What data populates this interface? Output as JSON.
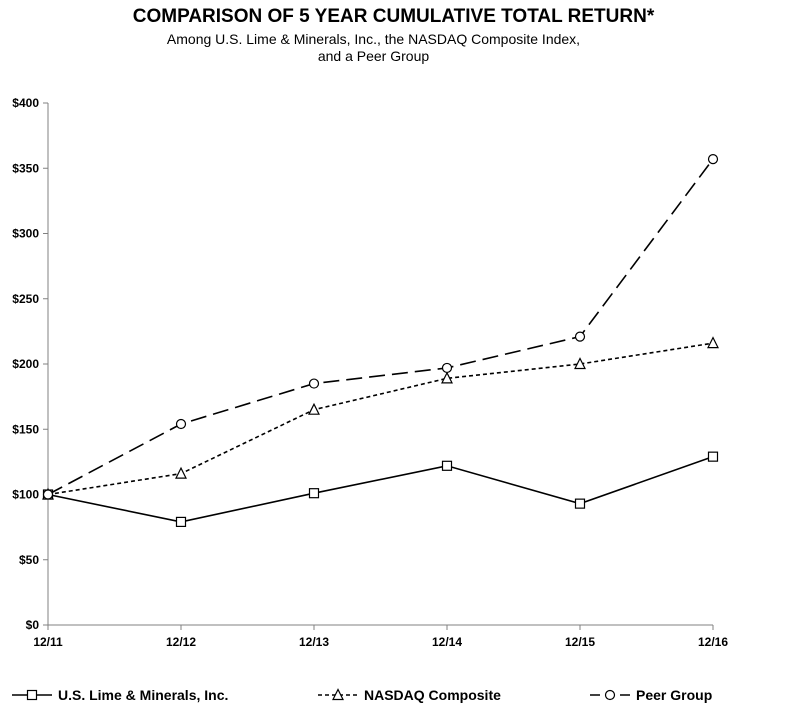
{
  "header": {
    "title": "COMPARISON OF 5 YEAR CUMULATIVE TOTAL RETURN*",
    "subtitle_line1": "Among U.S. Lime & Minerals, Inc., the NASDAQ Composite Index,",
    "subtitle_line2": "and a Peer Group"
  },
  "chart_data": {
    "type": "line",
    "title": "COMPARISON OF 5 YEAR CUMULATIVE TOTAL RETURN*",
    "subtitle": "Among U.S. Lime & Minerals, Inc., the NASDAQ Composite Index, and a Peer Group",
    "categories": [
      "12/11",
      "12/12",
      "12/13",
      "12/14",
      "12/15",
      "12/16"
    ],
    "ylim": [
      0,
      400
    ],
    "yticks": [
      0,
      50,
      100,
      150,
      200,
      250,
      300,
      350,
      400
    ],
    "ytick_labels": [
      "$0",
      "$50",
      "$100",
      "$150",
      "$200",
      "$250",
      "$300",
      "$350",
      "$400"
    ],
    "grid": false,
    "legend_position": "bottom",
    "series": [
      {
        "name": "U.S. Lime & Minerals, Inc.",
        "marker": "square",
        "line_style": "solid",
        "values": [
          100,
          79,
          101,
          122,
          93,
          129
        ]
      },
      {
        "name": "NASDAQ Composite",
        "marker": "triangle",
        "line_style": "dotted",
        "values": [
          100,
          116,
          165,
          189,
          200,
          216
        ]
      },
      {
        "name": "Peer Group",
        "marker": "circle",
        "line_style": "dashed",
        "values": [
          100,
          154,
          185,
          197,
          221,
          357
        ]
      }
    ]
  }
}
